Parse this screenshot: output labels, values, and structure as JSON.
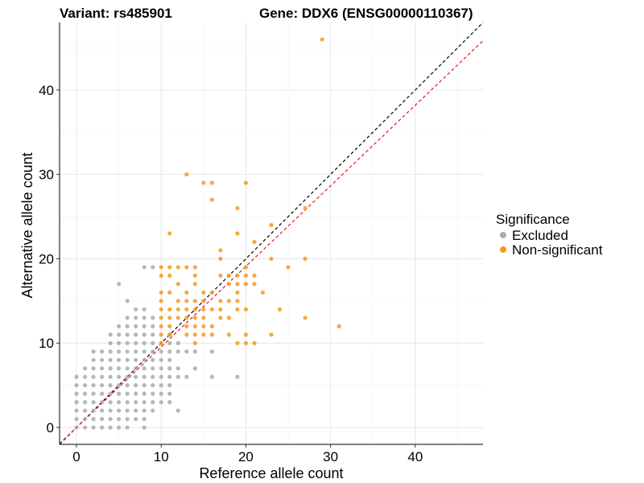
{
  "chart_data": {
    "type": "scatter",
    "title_left": "Variant: rs485901",
    "title_right": "Gene: DDX6 (ENSG00000110367)",
    "xlabel": "Reference allele count",
    "ylabel": "Alternative allele count",
    "xlim": [
      -2,
      48
    ],
    "ylim": [
      -2,
      48
    ],
    "xticks": [
      0,
      10,
      20,
      30,
      40
    ],
    "yticks": [
      0,
      10,
      20,
      30,
      40
    ],
    "grid": true,
    "legend": {
      "title": "Significance",
      "position": "right",
      "entries": [
        {
          "label": "Excluded",
          "color": "#aaaaaa"
        },
        {
          "label": "Non-significant",
          "color": "#f59a1c"
        }
      ]
    },
    "reference_lines": [
      {
        "name": "y = x",
        "slope": 1,
        "intercept": 0,
        "color": "#000000",
        "dash": true
      },
      {
        "name": "fit",
        "slope": 0.955,
        "intercept": 0,
        "color": "#e41a1c",
        "dash": true
      }
    ],
    "series": [
      {
        "name": "Excluded",
        "color": "#aaaaaa",
        "points": [
          [
            0,
            0
          ],
          [
            0,
            1
          ],
          [
            0,
            2
          ],
          [
            0,
            3
          ],
          [
            0,
            4
          ],
          [
            0,
            5
          ],
          [
            0,
            6
          ],
          [
            1,
            0
          ],
          [
            1,
            1
          ],
          [
            1,
            2
          ],
          [
            1,
            3
          ],
          [
            1,
            4
          ],
          [
            1,
            5
          ],
          [
            1,
            6
          ],
          [
            1,
            7
          ],
          [
            2,
            0
          ],
          [
            2,
            1
          ],
          [
            2,
            2
          ],
          [
            2,
            3
          ],
          [
            2,
            4
          ],
          [
            2,
            5
          ],
          [
            2,
            6
          ],
          [
            2,
            7
          ],
          [
            2,
            8
          ],
          [
            2,
            9
          ],
          [
            3,
            0
          ],
          [
            3,
            1
          ],
          [
            3,
            2
          ],
          [
            3,
            3
          ],
          [
            3,
            4
          ],
          [
            3,
            5
          ],
          [
            3,
            6
          ],
          [
            3,
            7
          ],
          [
            3,
            8
          ],
          [
            3,
            9
          ],
          [
            4,
            0
          ],
          [
            4,
            1
          ],
          [
            4,
            2
          ],
          [
            4,
            3
          ],
          [
            4,
            4
          ],
          [
            4,
            5
          ],
          [
            4,
            6
          ],
          [
            4,
            7
          ],
          [
            4,
            8
          ],
          [
            4,
            9
          ],
          [
            4,
            10
          ],
          [
            4,
            11
          ],
          [
            5,
            0
          ],
          [
            5,
            1
          ],
          [
            5,
            2
          ],
          [
            5,
            3
          ],
          [
            5,
            4
          ],
          [
            5,
            5
          ],
          [
            5,
            6
          ],
          [
            5,
            7
          ],
          [
            5,
            8
          ],
          [
            5,
            9
          ],
          [
            5,
            10
          ],
          [
            5,
            11
          ],
          [
            5,
            12
          ],
          [
            5,
            17
          ],
          [
            6,
            0
          ],
          [
            6,
            1
          ],
          [
            6,
            2
          ],
          [
            6,
            3
          ],
          [
            6,
            4
          ],
          [
            6,
            5
          ],
          [
            6,
            6
          ],
          [
            6,
            7
          ],
          [
            6,
            8
          ],
          [
            6,
            9
          ],
          [
            6,
            10
          ],
          [
            6,
            11
          ],
          [
            6,
            12
          ],
          [
            6,
            13
          ],
          [
            6,
            15
          ],
          [
            7,
            1
          ],
          [
            7,
            2
          ],
          [
            7,
            3
          ],
          [
            7,
            4
          ],
          [
            7,
            5
          ],
          [
            7,
            6
          ],
          [
            7,
            7
          ],
          [
            7,
            8
          ],
          [
            7,
            9
          ],
          [
            7,
            10
          ],
          [
            7,
            11
          ],
          [
            7,
            12
          ],
          [
            7,
            13
          ],
          [
            7,
            14
          ],
          [
            8,
            0
          ],
          [
            8,
            1
          ],
          [
            8,
            2
          ],
          [
            8,
            3
          ],
          [
            8,
            4
          ],
          [
            8,
            5
          ],
          [
            8,
            6
          ],
          [
            8,
            7
          ],
          [
            8,
            8
          ],
          [
            8,
            9
          ],
          [
            8,
            10
          ],
          [
            8,
            11
          ],
          [
            8,
            12
          ],
          [
            8,
            13
          ],
          [
            8,
            14
          ],
          [
            9,
            2
          ],
          [
            9,
            3
          ],
          [
            9,
            4
          ],
          [
            9,
            5
          ],
          [
            9,
            6
          ],
          [
            9,
            7
          ],
          [
            9,
            8
          ],
          [
            9,
            9
          ],
          [
            9,
            10
          ],
          [
            9,
            11
          ],
          [
            9,
            12
          ],
          [
            9,
            13
          ],
          [
            9,
            19
          ],
          [
            10,
            3
          ],
          [
            10,
            4
          ],
          [
            10,
            5
          ],
          [
            10,
            6
          ],
          [
            10,
            7
          ],
          [
            10,
            8
          ],
          [
            10,
            9
          ],
          [
            11,
            3
          ],
          [
            11,
            4
          ],
          [
            11,
            5
          ],
          [
            11,
            6
          ],
          [
            11,
            7
          ],
          [
            11,
            8
          ],
          [
            11,
            9
          ],
          [
            11,
            10
          ],
          [
            11,
            11
          ],
          [
            12,
            2
          ],
          [
            12,
            6
          ],
          [
            12,
            7
          ],
          [
            12,
            9
          ],
          [
            12,
            10
          ],
          [
            13,
            6
          ],
          [
            13,
            9
          ],
          [
            14,
            7
          ],
          [
            14,
            9
          ],
          [
            16,
            6
          ],
          [
            16,
            9
          ],
          [
            19,
            6
          ],
          [
            8,
            19
          ]
        ]
      },
      {
        "name": "Non-significant",
        "color": "#f59a1c",
        "points": [
          [
            10,
            10
          ],
          [
            10,
            11
          ],
          [
            10,
            12
          ],
          [
            10,
            13
          ],
          [
            10,
            14
          ],
          [
            10,
            15
          ],
          [
            10,
            16
          ],
          [
            10,
            18
          ],
          [
            10,
            19
          ],
          [
            11,
            11
          ],
          [
            11,
            12
          ],
          [
            11,
            13
          ],
          [
            11,
            14
          ],
          [
            11,
            16
          ],
          [
            11,
            18
          ],
          [
            11,
            19
          ],
          [
            11,
            23
          ],
          [
            12,
            13
          ],
          [
            12,
            14
          ],
          [
            12,
            15
          ],
          [
            12,
            17
          ],
          [
            12,
            19
          ],
          [
            13,
            11
          ],
          [
            13,
            12
          ],
          [
            13,
            13
          ],
          [
            13,
            14
          ],
          [
            13,
            15
          ],
          [
            13,
            16
          ],
          [
            13,
            19
          ],
          [
            13,
            30
          ],
          [
            14,
            10
          ],
          [
            14,
            11
          ],
          [
            14,
            12
          ],
          [
            14,
            13
          ],
          [
            14,
            14
          ],
          [
            14,
            15
          ],
          [
            14,
            17
          ],
          [
            14,
            18
          ],
          [
            14,
            19
          ],
          [
            15,
            11
          ],
          [
            15,
            12
          ],
          [
            15,
            13
          ],
          [
            15,
            14
          ],
          [
            15,
            15
          ],
          [
            15,
            16
          ],
          [
            15,
            29
          ],
          [
            16,
            11
          ],
          [
            16,
            12
          ],
          [
            16,
            14
          ],
          [
            16,
            16
          ],
          [
            16,
            27
          ],
          [
            16,
            29
          ],
          [
            17,
            13
          ],
          [
            17,
            14
          ],
          [
            17,
            15
          ],
          [
            17,
            18
          ],
          [
            17,
            20
          ],
          [
            17,
            21
          ],
          [
            18,
            11
          ],
          [
            18,
            13
          ],
          [
            18,
            15
          ],
          [
            18,
            17
          ],
          [
            18,
            18
          ],
          [
            19,
            10
          ],
          [
            19,
            14
          ],
          [
            19,
            15
          ],
          [
            19,
            16
          ],
          [
            19,
            17
          ],
          [
            19,
            18
          ],
          [
            19,
            23
          ],
          [
            19,
            26
          ],
          [
            20,
            10
          ],
          [
            20,
            11
          ],
          [
            20,
            14
          ],
          [
            20,
            17
          ],
          [
            20,
            18
          ],
          [
            20,
            19
          ],
          [
            20,
            29
          ],
          [
            21,
            10
          ],
          [
            21,
            17
          ],
          [
            21,
            18
          ],
          [
            21,
            22
          ],
          [
            22,
            16
          ],
          [
            23,
            11
          ],
          [
            23,
            20
          ],
          [
            23,
            24
          ],
          [
            24,
            14
          ],
          [
            25,
            19
          ],
          [
            27,
            13
          ],
          [
            27,
            20
          ],
          [
            27,
            26
          ],
          [
            29,
            46
          ],
          [
            31,
            12
          ]
        ]
      }
    ]
  }
}
